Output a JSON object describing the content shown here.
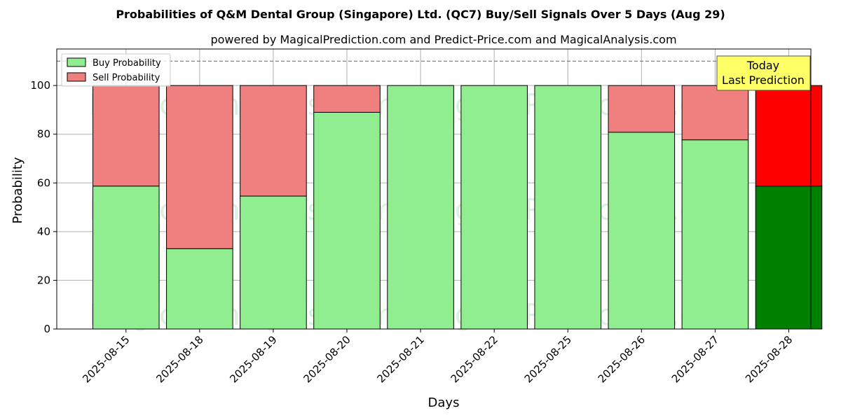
{
  "chart_data": {
    "type": "bar",
    "stacked": true,
    "title": "Probabilities of Q&M Dental Group (Singapore) Ltd. (QC7) Buy/Sell Signals Over 5 Days (Aug 29)",
    "subtitle": "powered by MagicalPrediction.com and Predict-Price.com and MagicalAnalysis.com",
    "xlabel": "Days",
    "ylabel": "Probability",
    "ylim": [
      0,
      115
    ],
    "yticks": [
      0,
      20,
      40,
      60,
      80,
      100
    ],
    "reference_line": 110,
    "grid": true,
    "legend_position": "top-left",
    "categories": [
      "2025-08-15",
      "2025-08-18",
      "2025-08-19",
      "2025-08-20",
      "2025-08-21",
      "2025-08-22",
      "2025-08-25",
      "2025-08-26",
      "2025-08-27",
      "2025-08-28"
    ],
    "series": [
      {
        "name": "Buy Probability",
        "color": "#90ee90",
        "highlight_color": "#008000",
        "values": [
          58.7,
          33.0,
          54.6,
          89.0,
          100,
          100,
          100,
          80.8,
          77.7,
          58.7
        ]
      },
      {
        "name": "Sell Probability",
        "color": "#f08080",
        "highlight_color": "#ff0000",
        "values": [
          41.3,
          67.0,
          45.4,
          11.0,
          0,
          0,
          0,
          19.2,
          22.3,
          41.3
        ]
      }
    ],
    "highlight_index": 9,
    "annotation": {
      "lines": [
        "Today",
        "Last Prediction"
      ],
      "bg_color": "#ffff66"
    },
    "watermarks": [
      "MagicalAnalysis.com",
      "MagicalPrediction.com"
    ]
  }
}
